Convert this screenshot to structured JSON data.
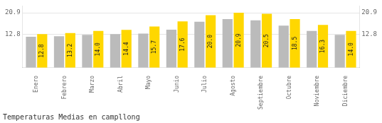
{
  "chart_data": {
    "type": "bar",
    "title": "Temperaturas Medias en campllong",
    "categories": [
      "Enero",
      "Febrero",
      "Marzo",
      "Abril",
      "Mayo",
      "Junio",
      "Julio",
      "Agosto",
      "Septiembre",
      "Octubre",
      "Noviembre",
      "Diciembre"
    ],
    "series": [
      {
        "color": "#BBBBBB",
        "values": [
          11.8,
          12.0,
          12.5,
          12.8,
          13.0,
          14.5,
          17.5,
          18.5,
          18.0,
          16.0,
          14.0,
          12.5
        ]
      },
      {
        "color": "#FFD700",
        "values": [
          12.8,
          13.2,
          14.0,
          14.4,
          15.7,
          17.6,
          20.0,
          20.9,
          20.5,
          18.5,
          16.3,
          14.0
        ],
        "data_labels": true,
        "value_labels": [
          "12.8",
          "13.2",
          "14.0",
          "14.4",
          "15.7",
          "17.6",
          "20.0",
          "20.9",
          "20.5",
          "18.5",
          "16.3",
          "14.0"
        ]
      }
    ],
    "ylim": [
      0,
      23.5
    ],
    "yticks": [
      12.8,
      20.9
    ],
    "y2lim": [
      0,
      23.5
    ],
    "y2ticks": [
      12.8,
      20.9
    ],
    "grid": true
  }
}
